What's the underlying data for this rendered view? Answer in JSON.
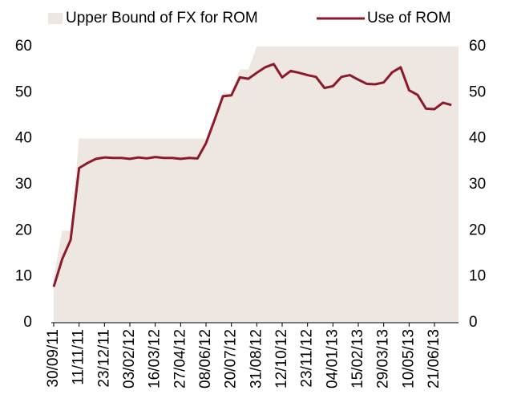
{
  "chart_data": {
    "type": "area-line",
    "categories": [
      "30/09/11",
      null,
      null,
      "11/11/11",
      null,
      null,
      "23/12/11",
      null,
      null,
      "03/02/12",
      null,
      null,
      "16/03/12",
      null,
      null,
      "27/04/12",
      null,
      null,
      "08/06/12",
      null,
      null,
      "20/07/12",
      null,
      null,
      "31/08/12",
      null,
      null,
      "12/10/12",
      null,
      null,
      "23/11/12",
      null,
      null,
      "04/01/13",
      null,
      null,
      "15/02/13",
      null,
      null,
      "29/03/13",
      null,
      null,
      "10/05/13",
      null,
      null,
      "21/06/13",
      null,
      null
    ],
    "series": [
      {
        "name": "Upper Bound of FX for ROM",
        "style": "area",
        "color": "#ede6e1",
        "values": [
          10,
          20,
          20,
          40,
          40,
          40,
          40,
          40,
          40,
          40,
          40,
          40,
          40,
          40,
          40,
          40,
          40,
          40,
          40,
          45,
          50,
          50,
          55,
          55,
          60,
          60,
          60,
          60,
          60,
          60,
          60,
          60,
          60,
          60,
          60,
          60,
          60,
          60,
          60,
          60,
          60,
          60,
          60,
          60,
          60,
          60,
          60,
          60
        ]
      },
      {
        "name": "Use of ROM",
        "style": "line",
        "color": "#8b1a2b",
        "values": [
          7.8,
          13.8,
          18,
          33.6,
          34.7,
          35.6,
          35.9,
          35.8,
          35.8,
          35.6,
          35.9,
          35.7,
          36,
          35.8,
          35.8,
          35.6,
          35.8,
          35.7,
          39,
          44,
          49.2,
          49.4,
          53.3,
          53,
          54.3,
          55.5,
          56.2,
          53.3,
          54.7,
          54.3,
          53.8,
          53.4,
          51,
          51.4,
          53.4,
          53.8,
          52.8,
          51.9,
          51.8,
          52.2,
          54.4,
          55.5,
          50.5,
          49.5,
          46.5,
          46.4,
          47.8,
          47.3
        ]
      }
    ],
    "ylim": [
      0,
      60
    ],
    "yticks": [
      0,
      10,
      20,
      30,
      40,
      50,
      60
    ],
    "y2lim": [
      0,
      60
    ],
    "y2ticks": [
      0,
      10,
      20,
      30,
      40,
      50,
      60
    ],
    "legend": "top"
  }
}
